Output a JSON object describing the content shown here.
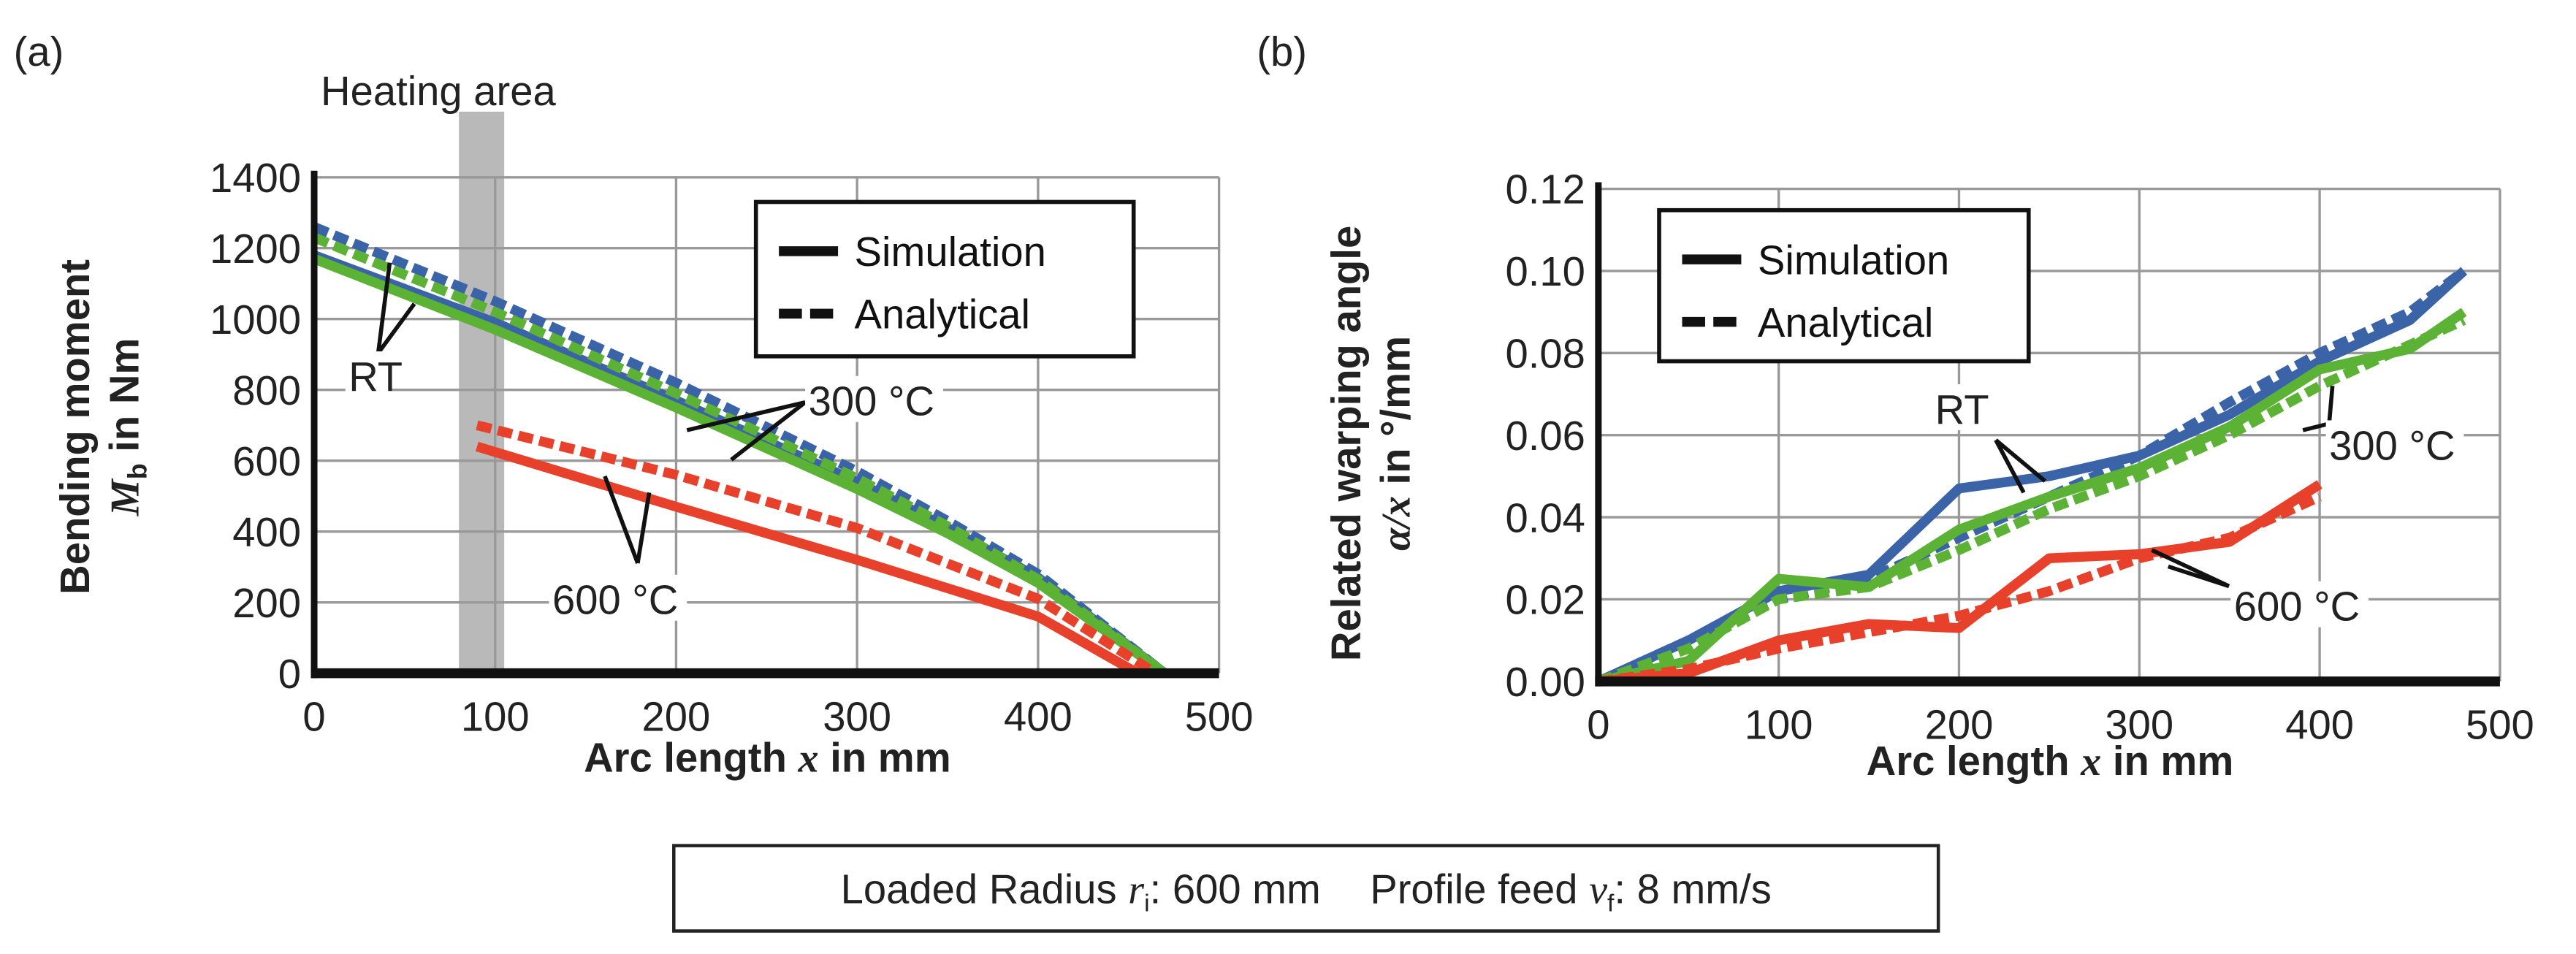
{
  "panel_labels": [
    "(a)",
    "(b)"
  ],
  "heating_label": "Heating area",
  "footer": {
    "radius_label": "Loaded Radius ",
    "radius_var": "r",
    "radius_sub": "i",
    "radius_value": ": 600 mm",
    "feed_label": "Profile feed ",
    "feed_var": "v",
    "feed_sub": "f",
    "feed_value": ": 8 mm/s"
  },
  "colors": {
    "RT": "#3b64a8",
    "300": "#5bb234",
    "600": "#e8412b",
    "heating": "#b9b9b9"
  },
  "chart_data": [
    {
      "type": "line",
      "title": "",
      "xlabel_pre": "Arc length ",
      "xlabel_var": "x",
      "xlabel_post": " in mm",
      "ylabel_line1": "Bending moment",
      "ylabel_var": "M",
      "ylabel_sub": "b",
      "ylabel_post": " in Nm",
      "xlim": [
        0,
        500
      ],
      "ylim": [
        0,
        1400
      ],
      "xticks": [
        "0",
        "100",
        "200",
        "300",
        "400",
        "500"
      ],
      "yticks": [
        "0",
        "200",
        "400",
        "600",
        "800",
        "1000",
        "1200",
        "1400"
      ],
      "heating_area_x": [
        80,
        105
      ],
      "grid": true,
      "legend": {
        "placement": "top-right",
        "entries": [
          "Simulation",
          "Analytical"
        ]
      },
      "annotations": [
        "RT",
        "300 °C",
        "600 °C"
      ],
      "series": [
        {
          "name": "RT Analytical",
          "group": "RT",
          "style": "dashed",
          "x": [
            0,
            100,
            200,
            300,
            350,
            400,
            470
          ],
          "y": [
            1260,
            1050,
            820,
            570,
            430,
            280,
            0
          ]
        },
        {
          "name": "RT Simulation",
          "group": "RT",
          "style": "solid",
          "x": [
            0,
            100,
            200,
            300,
            350,
            400,
            470
          ],
          "y": [
            1180,
            990,
            770,
            540,
            410,
            270,
            0
          ]
        },
        {
          "name": "300 °C Simulation",
          "group": "300",
          "style": "solid",
          "x": [
            0,
            100,
            200,
            300,
            350,
            400,
            470
          ],
          "y": [
            1170,
            970,
            750,
            520,
            395,
            255,
            0
          ]
        },
        {
          "name": "300 °C Analytical",
          "group": "300",
          "style": "dashed",
          "x": [
            0,
            100,
            200,
            300,
            350,
            400,
            470
          ],
          "y": [
            1230,
            1020,
            790,
            550,
            415,
            265,
            0
          ]
        },
        {
          "name": "600 °C Simulation",
          "group": "600",
          "style": "solid",
          "x": [
            90,
            200,
            300,
            400,
            455
          ],
          "y": [
            640,
            470,
            320,
            160,
            0
          ]
        },
        {
          "name": "600 °C Analytical",
          "group": "600",
          "style": "dashed",
          "x": [
            90,
            200,
            300,
            400,
            465
          ],
          "y": [
            700,
            560,
            410,
            210,
            0
          ]
        }
      ]
    },
    {
      "type": "line",
      "title": "",
      "xlabel_pre": "Arc length ",
      "xlabel_var": "x",
      "xlabel_post": " in mm",
      "ylabel_line1": "Related warping angle",
      "ylabel_var": "α/x",
      "ylabel_sub": "",
      "ylabel_post": " in °/mm",
      "xlim": [
        0,
        500
      ],
      "ylim": [
        0,
        0.12
      ],
      "xticks": [
        "0",
        "100",
        "200",
        "300",
        "400",
        "500"
      ],
      "yticks": [
        "0.00",
        "0.02",
        "0.04",
        "0.06",
        "0.08",
        "0.10",
        "0.12"
      ],
      "grid": true,
      "legend": {
        "placement": "top-left",
        "entries": [
          "Simulation",
          "Analytical"
        ]
      },
      "annotations": [
        "RT",
        "300 °C",
        "600 °C"
      ],
      "series": [
        {
          "name": "RT Analytical",
          "group": "RT",
          "style": "dashed",
          "x": [
            0,
            50,
            100,
            150,
            200,
            250,
            300,
            350,
            400,
            450,
            480
          ],
          "y": [
            0,
            0.01,
            0.02,
            0.025,
            0.035,
            0.045,
            0.055,
            0.068,
            0.08,
            0.09,
            0.1
          ]
        },
        {
          "name": "RT Simulation",
          "group": "RT",
          "style": "solid",
          "x": [
            0,
            50,
            100,
            150,
            200,
            250,
            300,
            350,
            400,
            450,
            480
          ],
          "y": [
            0,
            0.01,
            0.022,
            0.026,
            0.047,
            0.05,
            0.055,
            0.065,
            0.078,
            0.088,
            0.1
          ]
        },
        {
          "name": "300 °C Simulation",
          "group": "300",
          "style": "solid",
          "x": [
            0,
            50,
            100,
            150,
            200,
            250,
            300,
            350,
            400,
            450,
            480
          ],
          "y": [
            0,
            0.005,
            0.025,
            0.023,
            0.037,
            0.045,
            0.052,
            0.062,
            0.076,
            0.081,
            0.09
          ]
        },
        {
          "name": "300 °C Analytical",
          "group": "300",
          "style": "dashed",
          "x": [
            0,
            50,
            100,
            150,
            200,
            250,
            300,
            350,
            400,
            450,
            480
          ],
          "y": [
            0,
            0.008,
            0.02,
            0.023,
            0.032,
            0.042,
            0.05,
            0.06,
            0.072,
            0.082,
            0.088
          ]
        },
        {
          "name": "600 °C Simulation",
          "group": "600",
          "style": "solid",
          "x": [
            0,
            50,
            100,
            150,
            200,
            250,
            300,
            350,
            400
          ],
          "y": [
            0,
            0.002,
            0.01,
            0.014,
            0.013,
            0.03,
            0.031,
            0.034,
            0.048
          ]
        },
        {
          "name": "600 °C Analytical",
          "group": "600",
          "style": "dashed",
          "x": [
            0,
            50,
            100,
            150,
            200,
            250,
            300,
            350,
            400
          ],
          "y": [
            0,
            0.003,
            0.008,
            0.012,
            0.016,
            0.022,
            0.03,
            0.035,
            0.045
          ]
        }
      ]
    }
  ]
}
